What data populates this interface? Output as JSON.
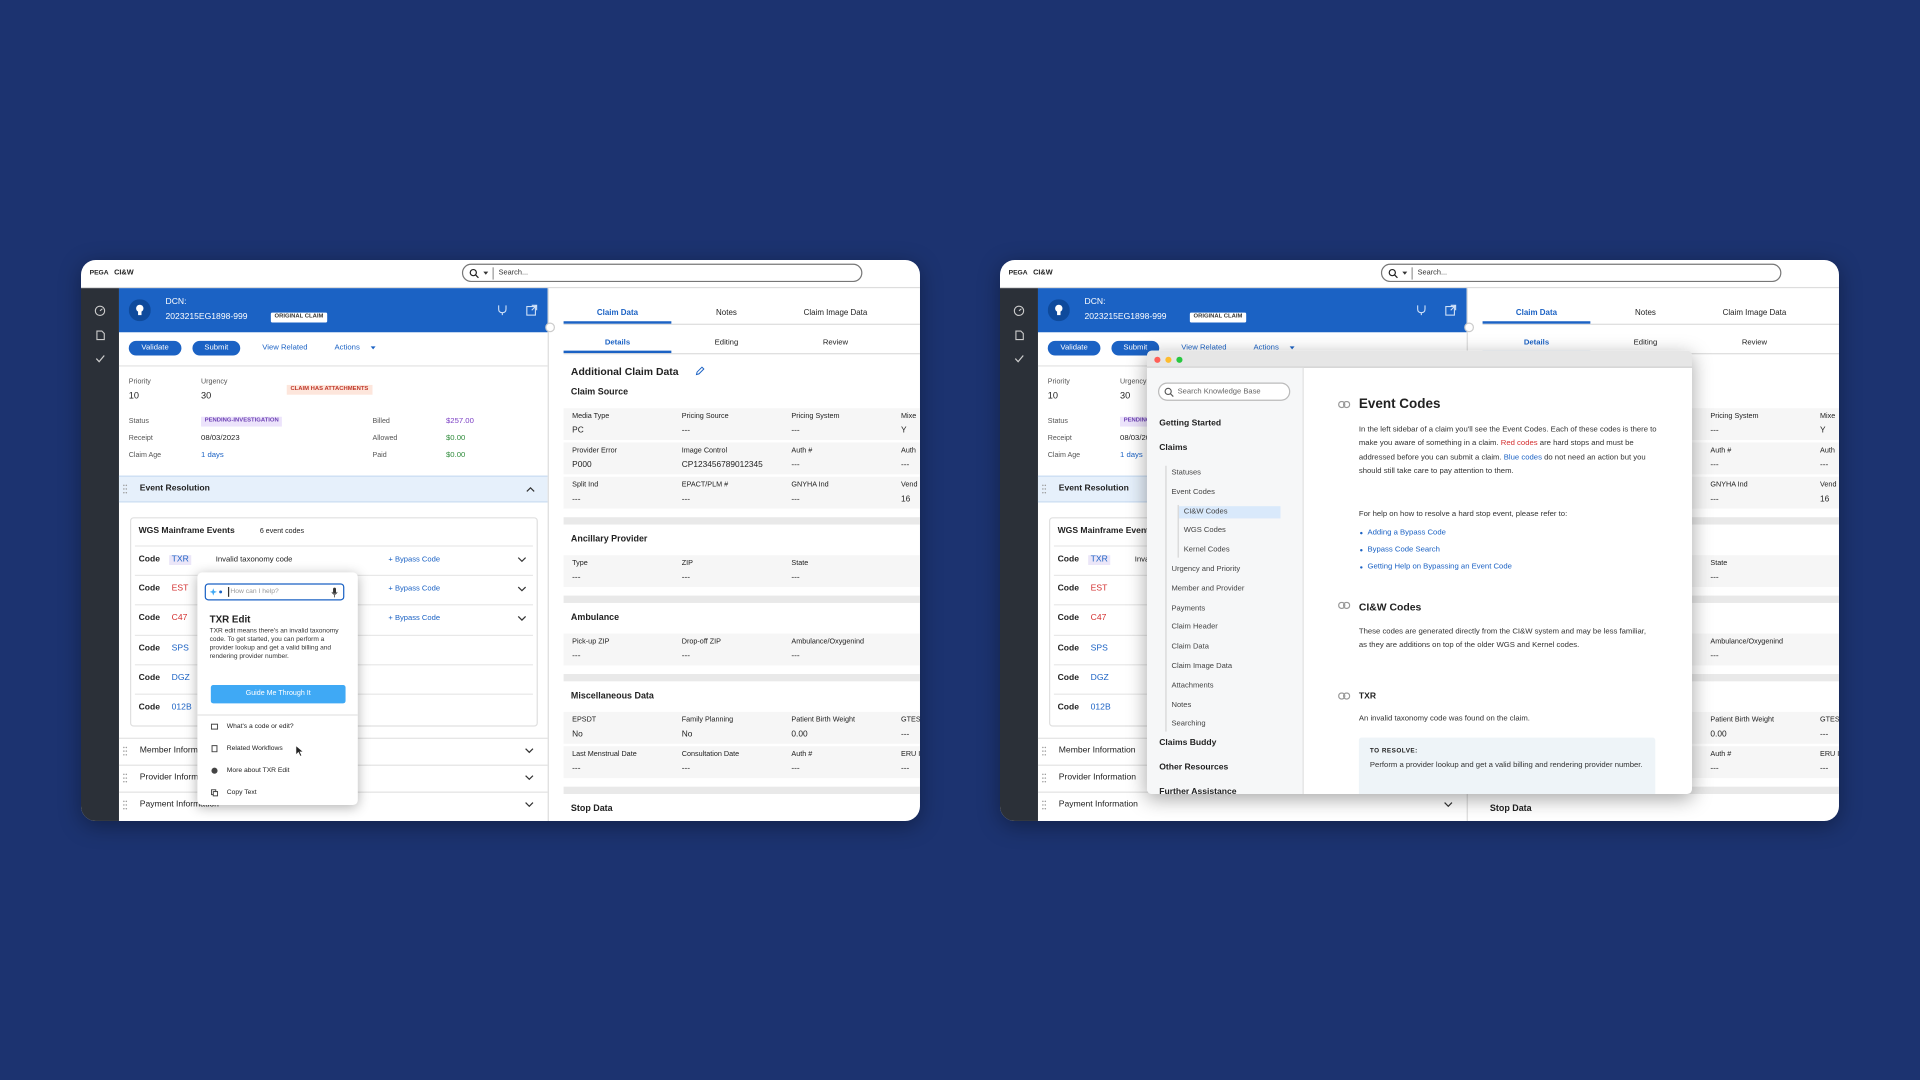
{
  "app": {
    "brand": "PEGA",
    "product": "CI&W",
    "search_placeholder": "Search...",
    "header": {
      "dcn_label": "DCN:",
      "dcn": "2023215EG1898-999",
      "badge": "ORIGINAL CLAIM"
    },
    "buttons": {
      "validate": "Validate",
      "submit": "Submit",
      "view_related": "View Related",
      "actions": "Actions"
    },
    "summary": {
      "priority_label": "Priority",
      "priority": "10",
      "urgency_label": "Urgency",
      "urgency": "30",
      "attachments_badge": "CLAIM HAS ATTACHMENTS",
      "status_label": "Status",
      "status": "PENDING-INVESTIGATION",
      "receipt_label": "Receipt",
      "receipt": "08/03/2023",
      "claim_age_label": "Claim Age",
      "claim_age": "1 days",
      "billed_label": "Billed",
      "billed": "$257.00",
      "allowed_label": "Allowed",
      "allowed": "$0.00",
      "paid_label": "Paid",
      "paid": "$0.00"
    },
    "event_resolution": {
      "title": "Event Resolution",
      "card_title": "WGS Mainframe Events",
      "count": "6 event codes",
      "code_label": "Code",
      "bypass_label": "+ Bypass Code",
      "codes": [
        {
          "code": "TXR",
          "color": "#1b62c4",
          "highlight": true,
          "description": "Invalid taxonomy code",
          "bypass": true
        },
        {
          "code": "EST",
          "color": "#d32f2f",
          "bypass": true
        },
        {
          "code": "C47",
          "color": "#d32f2f",
          "bypass": true
        },
        {
          "code": "SPS",
          "color": "#1b62c4"
        },
        {
          "code": "DGZ",
          "color": "#1b62c4"
        },
        {
          "code": "012B",
          "color": "#1b62c4"
        }
      ]
    },
    "collapsed_sections": [
      "Member Information",
      "Provider Information",
      "Payment Information"
    ],
    "tabs": [
      "Claim Data",
      "Notes",
      "Claim Image Data"
    ],
    "subtabs": [
      "Details",
      "Editing",
      "Review"
    ],
    "claim_data": {
      "title": "Additional Claim Data",
      "sections": [
        {
          "title": "Claim Source",
          "rows": [
            [
              {
                "label": "Media Type",
                "value": "PC"
              },
              {
                "label": "Pricing Source",
                "value": "---"
              },
              {
                "label": "Pricing System",
                "value": "---"
              },
              {
                "label": "Mixe",
                "value": "Y"
              }
            ],
            [
              {
                "label": "Provider Error",
                "value": "P000"
              },
              {
                "label": "Image Control",
                "value": "CP123456789012345"
              },
              {
                "label": "Auth #",
                "value": "---"
              },
              {
                "label": "Auth",
                "value": "---"
              }
            ],
            [
              {
                "label": "Split Ind",
                "value": "---"
              },
              {
                "label": "EPACT/PLM #",
                "value": "---"
              },
              {
                "label": "GNYHA Ind",
                "value": "---"
              },
              {
                "label": "Vend",
                "value": "16"
              }
            ]
          ]
        },
        {
          "title": "Ancillary Provider",
          "rows": [
            [
              {
                "label": "Type",
                "value": "---"
              },
              {
                "label": "ZIP",
                "value": "---"
              },
              {
                "label": "State",
                "value": "---"
              }
            ]
          ]
        },
        {
          "title": "Ambulance",
          "rows": [
            [
              {
                "label": "Pick-up ZIP",
                "value": "---"
              },
              {
                "label": "Drop-off ZIP",
                "value": "---"
              },
              {
                "label": "Ambulance/Oxygenind",
                "value": "---"
              }
            ]
          ]
        },
        {
          "title": "Miscellaneous Data",
          "rows": [
            [
              {
                "label": "EPSDT",
                "value": "No"
              },
              {
                "label": "Family Planning",
                "value": "No"
              },
              {
                "label": "Patient Birth Weight",
                "value": "0.00"
              },
              {
                "label": "GTES",
                "value": "---"
              }
            ],
            [
              {
                "label": "Last Menstrual Date",
                "value": "---"
              },
              {
                "label": "Consultation Date",
                "value": "---"
              },
              {
                "label": "Auth #",
                "value": "---"
              },
              {
                "label": "ERU I",
                "value": "---"
              }
            ]
          ]
        },
        {
          "title": "Stop Data",
          "rows": []
        }
      ]
    }
  },
  "assistant": {
    "placeholder": "How can I help?",
    "title": "TXR Edit",
    "body": "TXR edit means there's an invalid taxonomy code. To get started, you can perform a provider lookup and get a valid billing and rendering provider number.",
    "button": "Guide Me Through It",
    "menu": [
      "What's a code or edit?",
      "Related Workflows",
      "More about TXR Edit",
      "Copy Text"
    ]
  },
  "knowledge_base": {
    "search_placeholder": "Search Knowledge Base",
    "nav": [
      {
        "label": "Getting Started"
      },
      {
        "label": "Claims",
        "children": [
          {
            "label": "Statuses"
          },
          {
            "label": "Event Codes",
            "children": [
              {
                "label": "CI&W Codes",
                "selected": true
              },
              {
                "label": "WGS Codes"
              },
              {
                "label": "Kernel Codes"
              }
            ]
          },
          {
            "label": "Urgency and Priority"
          },
          {
            "label": "Member and Provider"
          },
          {
            "label": "Payments"
          },
          {
            "label": "Claim Header"
          },
          {
            "label": "Claim Data"
          },
          {
            "label": "Claim Image Data"
          },
          {
            "label": "Attachments"
          },
          {
            "label": "Notes"
          },
          {
            "label": "Searching"
          }
        ]
      },
      {
        "label": "Claims Buddy"
      },
      {
        "label": "Other Resources"
      },
      {
        "label": "Further Assistance"
      }
    ],
    "article": {
      "title": "Event Codes",
      "intro": [
        {
          "text": "In the left sidebar of a claim you'll see the Event Codes. Each of these codes is there to make you aware of something in a claim. "
        },
        {
          "text": "Red codes",
          "color": "#d32f2f"
        },
        {
          "text": " are hard stops and must be addressed before you can submit a claim. "
        },
        {
          "text": "Blue codes",
          "color": "#1b62c4"
        },
        {
          "text": " do not need an action but you should still take care to pay attention to them."
        }
      ],
      "help_intro": "For help on how to resolve a hard stop event, please refer to:",
      "links": [
        "Adding a Bypass Code",
        "Bypass Code Search",
        "Getting Help on Bypassing an Event Code"
      ],
      "sections": [
        {
          "title": "CI&W Codes",
          "body": "These codes are generated directly from the CI&W system and may be less familiar, as they are additions on top of the older WGS and Kernel codes."
        },
        {
          "title": "TXR",
          "body": "An invalid taxonomy code was found on the claim.",
          "callout_label": "TO RESOLVE:",
          "callout": "Perform a provider lookup and get a valid billing and rendering provider number."
        }
      ]
    }
  }
}
